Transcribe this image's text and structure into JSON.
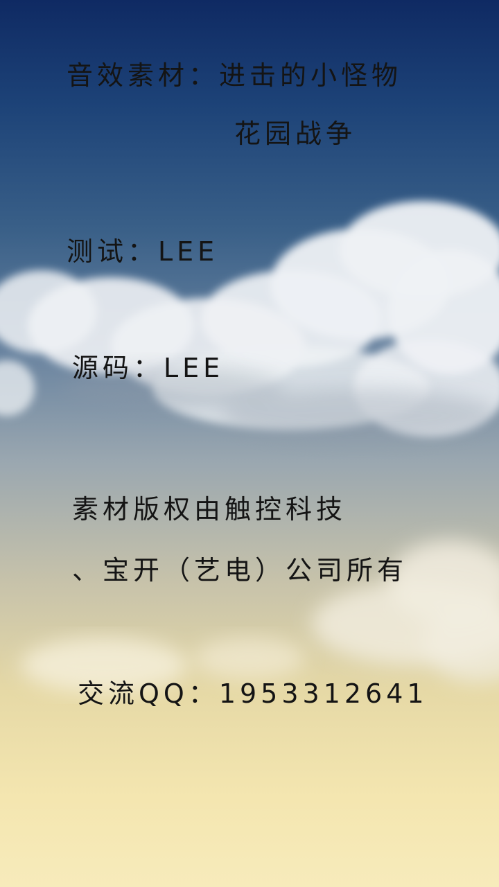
{
  "credits": {
    "sound_line": "音效素材：进击的小怪物",
    "game_name": "花园战争",
    "test_line": "测试：LEE",
    "source_line": "源码：LEE",
    "copyright_line1": "素材版权由触控科技",
    "copyright_line2": "、宝开（艺电）公司所有",
    "qq_line": "交流QQ：1953312641"
  },
  "colors": {
    "sky_top": "#0f2a63",
    "sky_bottom": "#f7ebbb",
    "text": "#141414"
  }
}
